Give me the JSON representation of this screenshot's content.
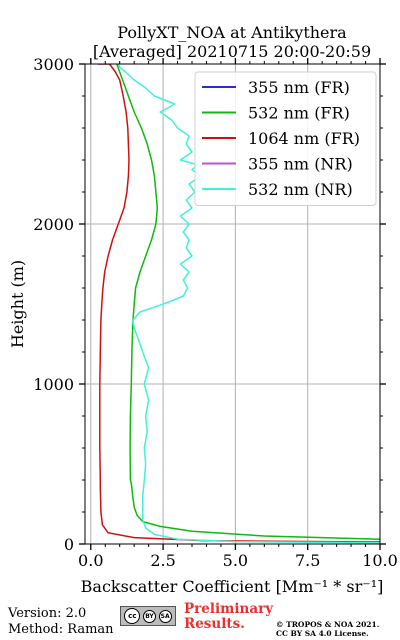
{
  "chart_data": {
    "type": "line",
    "title": "PollyXT_NOA at Antikythera",
    "subtitle": "[Averaged] 20210715 20:00-20:59",
    "xlabel": "Backscatter Coefficient [Mm⁻¹ * sr⁻¹]",
    "ylabel": "Height (m)",
    "xlim": [
      -0.2,
      10
    ],
    "ylim": [
      0,
      3000
    ],
    "xticks": [
      0,
      2.5,
      5,
      7.5,
      10
    ],
    "xtick_labels": [
      "0.0",
      "2.5",
      "5.0",
      "7.5",
      "10.0"
    ],
    "yticks": [
      0,
      1000,
      2000,
      3000
    ],
    "ytick_labels": [
      "0",
      "1000",
      "2000",
      "3000"
    ],
    "grid": true,
    "legend_position": "top-right",
    "series": [
      {
        "name": "355 nm (FR)",
        "color": "#2b2bd0",
        "x": [],
        "y": []
      },
      {
        "name": "532 nm (FR)",
        "color": "#10b810",
        "x": [
          12.0,
          6.0,
          3.5,
          2.4,
          1.8,
          1.6,
          1.5,
          1.45,
          1.4,
          1.37,
          1.36,
          1.37,
          1.4,
          1.42,
          1.44,
          1.46,
          1.5,
          1.55,
          1.7,
          1.9,
          2.1,
          2.25,
          2.3,
          2.25,
          2.2,
          2.1,
          1.95,
          1.75,
          1.5,
          1.2,
          0.9
        ],
        "y": [
          20,
          50,
          80,
          110,
          140,
          180,
          230,
          300,
          380,
          400,
          600,
          800,
          1000,
          1200,
          1300,
          1400,
          1500,
          1600,
          1700,
          1800,
          1900,
          2000,
          2100,
          2200,
          2300,
          2400,
          2500,
          2600,
          2700,
          2850,
          3000
        ]
      },
      {
        "name": "1064 nm (FR)",
        "color": "#d01010",
        "x": [
          12.0,
          4.0,
          1.5,
          0.6,
          0.4,
          0.35,
          0.33,
          0.33,
          0.31,
          0.31,
          0.33,
          0.35,
          0.38,
          0.42,
          0.48,
          0.6,
          0.75,
          0.95,
          1.15,
          1.25,
          1.3,
          1.32,
          1.3,
          1.28,
          1.22,
          1.12,
          1.0,
          0.85,
          0.65,
          0.4,
          0.25
        ],
        "y": [
          10,
          20,
          40,
          70,
          120,
          200,
          350,
          400,
          600,
          1000,
          1200,
          1400,
          1500,
          1600,
          1700,
          1800,
          1900,
          2000,
          2100,
          2200,
          2300,
          2400,
          2500,
          2600,
          2700,
          2800,
          2900,
          2950,
          3000,
          3000,
          3000
        ]
      },
      {
        "name": "355 nm (NR)",
        "color": "#b455dd",
        "x": [],
        "y": []
      },
      {
        "name": "532 nm (NR)",
        "color": "#3ff2d8",
        "x": [
          12.0,
          5.0,
          3.0,
          2.2,
          1.9,
          1.8,
          1.8,
          1.85,
          1.9,
          1.85,
          1.95,
          1.9,
          2.0,
          1.85,
          2.0,
          1.9,
          1.8,
          1.7,
          1.6,
          1.5,
          1.45,
          1.6,
          1.7,
          2.2,
          2.8,
          3.2,
          3.35,
          3.2,
          3.4,
          3.1,
          3.5,
          3.3,
          3.4,
          3.2,
          3.4,
          3.1,
          3.5,
          3.3,
          3.6,
          3.4,
          3.8,
          3.5,
          3.7,
          3.1,
          3.5,
          3.3,
          3.4,
          3.0,
          2.8,
          2.4,
          2.9,
          2.2,
          1.9,
          1.5,
          1.2,
          1.0,
          0.95
        ],
        "y": [
          5,
          15,
          30,
          60,
          100,
          150,
          300,
          400,
          500,
          600,
          700,
          800,
          900,
          1000,
          1100,
          1150,
          1200,
          1250,
          1300,
          1350,
          1400,
          1430,
          1450,
          1480,
          1520,
          1550,
          1600,
          1650,
          1700,
          1750,
          1800,
          1850,
          1900,
          1950,
          2000,
          2050,
          2100,
          2150,
          2200,
          2250,
          2300,
          2340,
          2370,
          2400,
          2450,
          2500,
          2550,
          2600,
          2650,
          2700,
          2750,
          2800,
          2850,
          2900,
          2950,
          2980,
          3000
        ]
      }
    ]
  },
  "footer": {
    "version": "Version: 2.0",
    "method": "Method: Raman",
    "preliminary_line1": "Preliminary",
    "preliminary_line2": "Results.",
    "copyright_line1": "© TROPOS & NOA 2021.",
    "copyright_line2": "CC BY SA 4.0 License.",
    "cc_badge": {
      "main": "cc",
      "by": "BY",
      "sa": "SA"
    }
  }
}
